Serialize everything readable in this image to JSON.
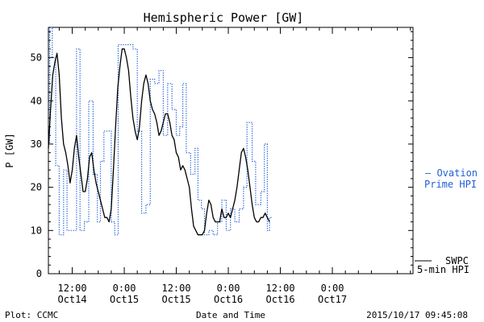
{
  "chart_data": {
    "type": "line",
    "title": "Hemispheric Power [GW]",
    "ylabel": "P [GW]",
    "xlabel": "Date and Time",
    "ylim": [
      0,
      57
    ],
    "yticks": [
      0,
      10,
      20,
      30,
      40,
      50
    ],
    "x_unit": "hours since 2015-10-14 00:00",
    "xlim": [
      6.5,
      90.6
    ],
    "xticks": [
      {
        "x": 12,
        "line1": "12:00",
        "line2": "Oct14"
      },
      {
        "x": 24,
        "line1": "0:00",
        "line2": "Oct15"
      },
      {
        "x": 36,
        "line1": "12:00",
        "line2": "Oct15"
      },
      {
        "x": 48,
        "line1": "0:00",
        "line2": "Oct16"
      },
      {
        "x": 60,
        "line1": "12:00",
        "line2": "Oct16"
      },
      {
        "x": 72,
        "line1": "0:00",
        "line2": "Oct17"
      }
    ],
    "legend": [
      "– Ovation",
      "Prime HPI",
      "SWPC",
      "5-min HPI"
    ],
    "series": [
      {
        "name": "Ovation Prime HPI",
        "color": "#1f5fd6",
        "style": "dotted-step",
        "points": [
          [
            6.5,
            30
          ],
          [
            6.8,
            57
          ],
          [
            7.4,
            50
          ],
          [
            8.2,
            25
          ],
          [
            9.0,
            9
          ],
          [
            10.0,
            24
          ],
          [
            10.8,
            10
          ],
          [
            12.5,
            10
          ],
          [
            13.0,
            52
          ],
          [
            13.8,
            10
          ],
          [
            14.8,
            12
          ],
          [
            15.8,
            40
          ],
          [
            16.8,
            23
          ],
          [
            17.8,
            12
          ],
          [
            18.5,
            26
          ],
          [
            19.3,
            33
          ],
          [
            21.0,
            12
          ],
          [
            21.8,
            9
          ],
          [
            22.6,
            53
          ],
          [
            26.0,
            52
          ],
          [
            27.0,
            33
          ],
          [
            28.0,
            14
          ],
          [
            29.0,
            16
          ],
          [
            30.0,
            45
          ],
          [
            31.0,
            44
          ],
          [
            32.0,
            47
          ],
          [
            33.0,
            32
          ],
          [
            34.0,
            44
          ],
          [
            35.0,
            38
          ],
          [
            36.0,
            32
          ],
          [
            36.8,
            34
          ],
          [
            37.5,
            44
          ],
          [
            38.3,
            28
          ],
          [
            39.3,
            23
          ],
          [
            40.3,
            29
          ],
          [
            41.0,
            17
          ],
          [
            41.8,
            15
          ],
          [
            42.5,
            9
          ],
          [
            43.5,
            10
          ],
          [
            44.5,
            9
          ],
          [
            45.5,
            12
          ],
          [
            46.5,
            17
          ],
          [
            47.5,
            10
          ],
          [
            48.5,
            15
          ],
          [
            49.5,
            12
          ],
          [
            50.5,
            15
          ],
          [
            51.5,
            20
          ],
          [
            52.3,
            35
          ],
          [
            53.5,
            26
          ],
          [
            54.3,
            16
          ],
          [
            55.5,
            19
          ],
          [
            56.3,
            30
          ],
          [
            57.0,
            10
          ],
          [
            57.5,
            13
          ]
        ]
      },
      {
        "name": "SWPC 5-min HPI",
        "color": "#000000",
        "style": "solid",
        "points": [
          [
            6.5,
            29
          ],
          [
            7.0,
            38
          ],
          [
            7.5,
            46
          ],
          [
            8.0,
            49
          ],
          [
            8.5,
            51
          ],
          [
            9.0,
            46
          ],
          [
            9.5,
            36
          ],
          [
            10.0,
            30
          ],
          [
            10.5,
            28
          ],
          [
            11.0,
            25
          ],
          [
            11.5,
            21
          ],
          [
            12.0,
            24
          ],
          [
            12.5,
            29
          ],
          [
            13.0,
            32
          ],
          [
            13.5,
            27
          ],
          [
            14.0,
            23
          ],
          [
            14.5,
            19
          ],
          [
            15.0,
            19
          ],
          [
            15.5,
            22
          ],
          [
            16.0,
            27
          ],
          [
            16.5,
            28
          ],
          [
            17.0,
            24
          ],
          [
            17.5,
            21
          ],
          [
            18.0,
            19
          ],
          [
            18.5,
            17
          ],
          [
            19.0,
            15
          ],
          [
            19.5,
            13
          ],
          [
            20.0,
            13
          ],
          [
            20.5,
            12
          ],
          [
            21.0,
            15
          ],
          [
            21.5,
            24
          ],
          [
            22.0,
            34
          ],
          [
            22.5,
            43
          ],
          [
            23.0,
            48
          ],
          [
            23.5,
            52
          ],
          [
            24.0,
            52
          ],
          [
            24.5,
            50
          ],
          [
            25.0,
            47
          ],
          [
            25.5,
            41
          ],
          [
            26.0,
            36
          ],
          [
            26.5,
            33
          ],
          [
            27.0,
            31
          ],
          [
            27.5,
            34
          ],
          [
            28.0,
            40
          ],
          [
            28.5,
            44
          ],
          [
            29.0,
            46
          ],
          [
            29.5,
            44
          ],
          [
            30.0,
            40
          ],
          [
            30.5,
            38
          ],
          [
            31.0,
            37
          ],
          [
            31.5,
            35
          ],
          [
            32.0,
            32
          ],
          [
            32.5,
            33
          ],
          [
            33.0,
            35
          ],
          [
            33.5,
            37
          ],
          [
            34.0,
            37
          ],
          [
            34.5,
            35
          ],
          [
            35.0,
            32
          ],
          [
            35.5,
            31
          ],
          [
            36.0,
            28
          ],
          [
            36.5,
            27
          ],
          [
            37.0,
            24
          ],
          [
            37.5,
            25
          ],
          [
            38.0,
            24
          ],
          [
            38.5,
            22
          ],
          [
            39.0,
            20
          ],
          [
            39.5,
            15
          ],
          [
            40.0,
            11
          ],
          [
            40.5,
            10
          ],
          [
            41.0,
            9
          ],
          [
            42.0,
            9
          ],
          [
            42.5,
            10
          ],
          [
            43.0,
            14
          ],
          [
            43.5,
            17
          ],
          [
            44.0,
            16
          ],
          [
            44.5,
            13
          ],
          [
            45.0,
            12
          ],
          [
            46.0,
            12
          ],
          [
            46.5,
            15
          ],
          [
            47.0,
            13
          ],
          [
            47.5,
            13
          ],
          [
            48.0,
            14
          ],
          [
            48.5,
            13
          ],
          [
            49.0,
            15
          ],
          [
            49.5,
            17
          ],
          [
            50.0,
            20
          ],
          [
            50.5,
            24
          ],
          [
            51.0,
            28
          ],
          [
            51.5,
            29
          ],
          [
            52.0,
            27
          ],
          [
            52.5,
            24
          ],
          [
            53.0,
            20
          ],
          [
            53.5,
            16
          ],
          [
            54.0,
            13
          ],
          [
            54.5,
            12
          ],
          [
            55.0,
            12
          ],
          [
            55.5,
            13
          ],
          [
            56.0,
            13
          ],
          [
            56.5,
            14
          ],
          [
            57.0,
            13
          ],
          [
            57.5,
            12
          ]
        ]
      }
    ]
  },
  "footer": {
    "left": "Plot: CCMC",
    "center": "Date and Time",
    "right": "2015/10/17 09:45:08"
  }
}
